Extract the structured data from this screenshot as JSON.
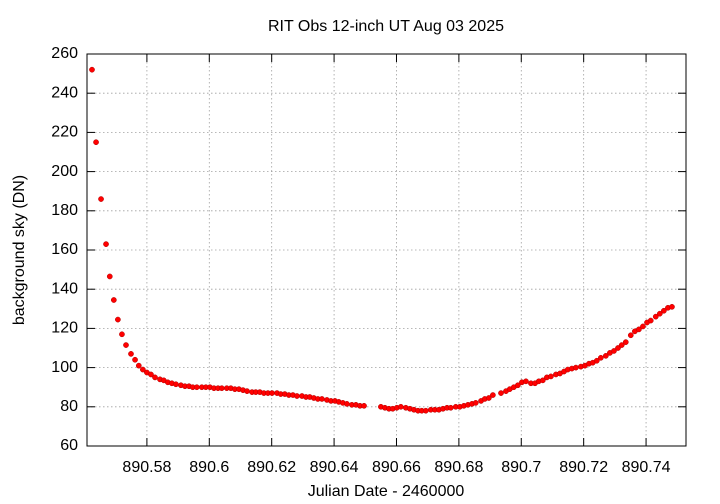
{
  "chart_data": {
    "type": "scatter",
    "title": "RIT Obs 12-inch UT Aug 03 2025",
    "xlabel": "Julian Date - 2460000",
    "ylabel": "background sky (DN)",
    "color": "#ff0000",
    "grid": true,
    "xlim": [
      890.5608,
      890.7528
    ],
    "ylim": [
      60,
      260
    ],
    "xticks": [
      890.58,
      890.6,
      890.62,
      890.64,
      890.66,
      890.68,
      890.7,
      890.72,
      890.74
    ],
    "yticks": [
      60,
      80,
      100,
      120,
      140,
      160,
      180,
      200,
      220,
      240,
      260
    ],
    "x": [
      890.5624,
      890.5637,
      890.5653,
      890.5669,
      890.5681,
      890.5694,
      890.5707,
      890.572,
      890.5733,
      890.5749,
      890.5762,
      890.5774,
      890.5787,
      890.58,
      890.5813,
      890.5826,
      890.5842,
      890.5854,
      890.5867,
      890.588,
      890.5893,
      890.5909,
      890.5922,
      890.5935,
      890.5947,
      890.596,
      890.5976,
      890.5989,
      890.6002,
      890.6015,
      890.6028,
      890.604,
      890.6056,
      890.6069,
      890.6082,
      890.6095,
      890.6108,
      890.6121,
      890.6137,
      890.6149,
      890.6162,
      890.6175,
      890.6188,
      890.6201,
      890.6217,
      890.6229,
      890.6242,
      890.6255,
      890.6268,
      890.6281,
      890.6297,
      890.631,
      890.6322,
      890.6335,
      890.6348,
      890.6361,
      890.6377,
      890.639,
      890.6403,
      890.6415,
      890.6428,
      890.6441,
      890.6457,
      890.647,
      890.6483,
      890.6496,
      890.655,
      890.6563,
      890.6576,
      890.6588,
      890.6601,
      890.6614,
      890.663,
      890.6643,
      890.6656,
      890.6669,
      890.6681,
      890.6694,
      890.671,
      890.6723,
      890.6736,
      890.6749,
      890.6762,
      890.6774,
      890.679,
      890.6803,
      890.6816,
      890.6829,
      890.6842,
      890.6854,
      890.6871,
      890.6883,
      890.6896,
      890.6909,
      890.6935,
      890.6951,
      890.6963,
      890.6976,
      890.6989,
      890.7002,
      890.7015,
      890.7031,
      890.7044,
      890.7056,
      890.7069,
      890.7082,
      890.7095,
      890.7111,
      890.7124,
      890.7137,
      890.7149,
      890.7162,
      890.7175,
      890.7191,
      890.7204,
      890.7217,
      890.7229,
      890.7242,
      890.7255,
      890.7271,
      890.7284,
      890.7297,
      890.731,
      890.7322,
      890.7335,
      890.7351,
      890.7364,
      890.7377,
      890.739,
      890.7403,
      890.7415,
      890.7431,
      890.7444,
      890.7457,
      890.747,
      890.7483
    ],
    "values": [
      252,
      215,
      186,
      163,
      146.5,
      134.5,
      124.5,
      117,
      111.5,
      107,
      104,
      101,
      99,
      97.5,
      96.5,
      95,
      94,
      93.5,
      92.5,
      92,
      91.5,
      91,
      90.5,
      90.5,
      90,
      90,
      90,
      90,
      90,
      89.5,
      89.5,
      89.5,
      89.5,
      89.5,
      89,
      89,
      88.5,
      88,
      87.5,
      87.5,
      87.5,
      87,
      87,
      87,
      87,
      86.5,
      86.5,
      86,
      86,
      85.5,
      85.5,
      85,
      85,
      84.5,
      84,
      84,
      83.5,
      83,
      83,
      82.5,
      82,
      81.5,
      81,
      81,
      80.5,
      80.5,
      80,
      79.5,
      79,
      79,
      79.5,
      80,
      79.5,
      79,
      78.5,
      78,
      78,
      78,
      78.5,
      78.5,
      78.5,
      79,
      79.5,
      79.5,
      80,
      80,
      80.5,
      81,
      81.5,
      82,
      83,
      84,
      84.5,
      86,
      87,
      88,
      89,
      90,
      91,
      92.5,
      93,
      92,
      92,
      93,
      93.5,
      95,
      95.5,
      96.5,
      97,
      98,
      99,
      99.5,
      100,
      100.5,
      101,
      102,
      102.5,
      103.5,
      105,
      106,
      107.5,
      108.5,
      110,
      111.5,
      113,
      116.5,
      118.5,
      119.5,
      121,
      123,
      124,
      126,
      127.5,
      129,
      130.5,
      131
    ]
  }
}
